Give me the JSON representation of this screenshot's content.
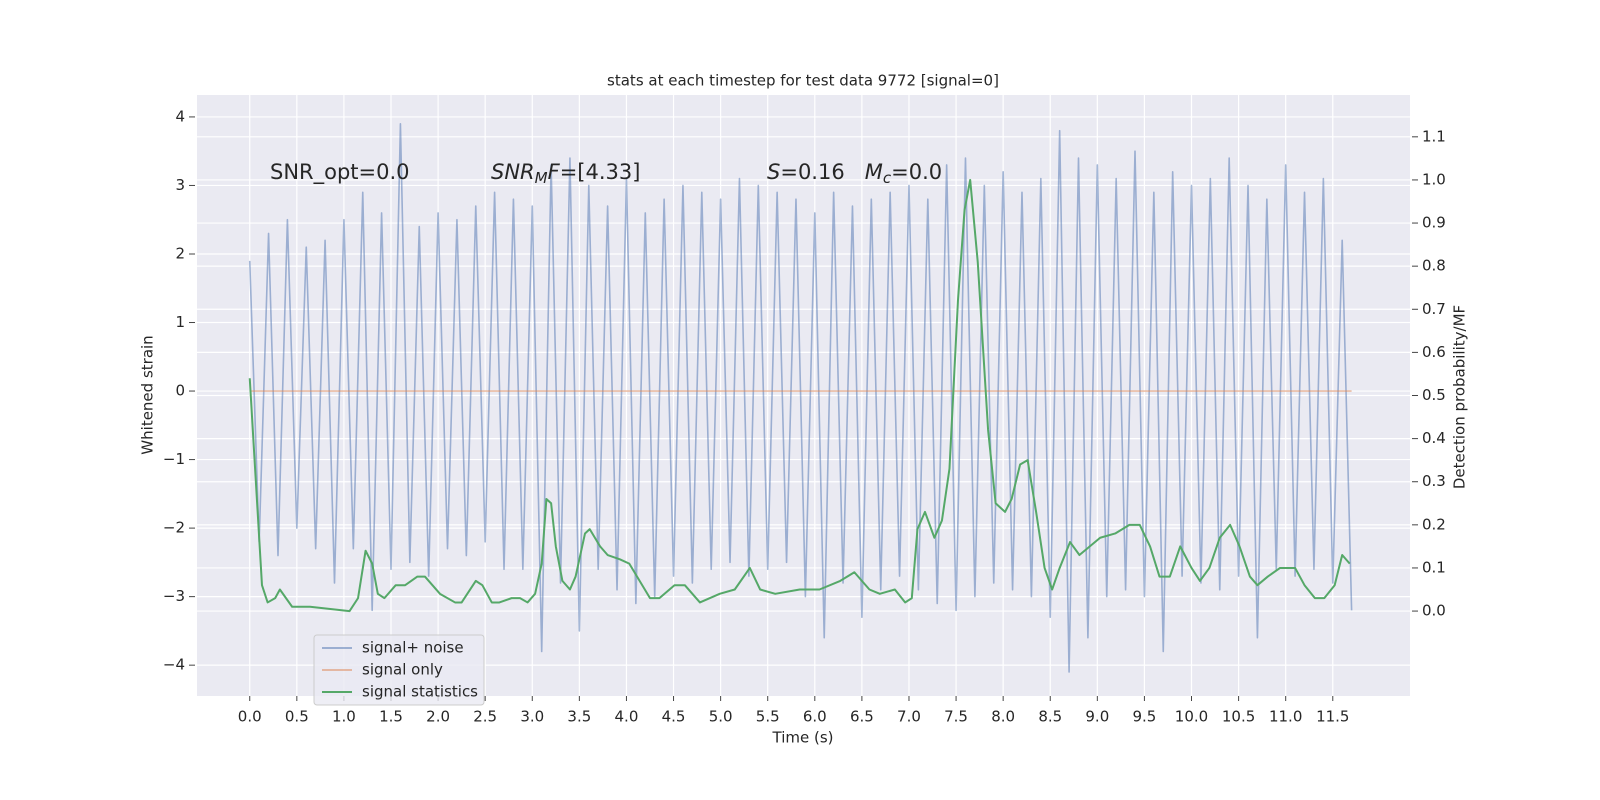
{
  "chart_data": {
    "type": "line",
    "title": "stats at each timestep for test data 9772 [signal=0]",
    "xlabel": "Time (s)",
    "ylabel": "Whitened strain",
    "y2label": "Detection probability/MF",
    "grid": true,
    "legend": "lower left",
    "annotations": [
      {
        "parts": [
          {
            "text": "SNR_opt=0.0"
          }
        ]
      },
      {
        "parts": [
          {
            "text": "SNR",
            "italic": true
          },
          {
            "text": "M",
            "italic": true,
            "sub": true
          },
          {
            "text": "F",
            "italic": true
          },
          {
            "text": "=[4.33]"
          }
        ]
      },
      {
        "parts": [
          {
            "text": "S",
            "italic": true
          },
          {
            "text": "=0.16   "
          },
          {
            "text": "M",
            "italic": true
          },
          {
            "text": "c",
            "italic": true,
            "sub": true
          },
          {
            "text": "=0.0"
          }
        ]
      }
    ],
    "xlim": [
      -0.56,
      12.32
    ],
    "ylim": [
      -4.45,
      4.32
    ],
    "y2lim": [
      -0.197,
      1.197
    ],
    "xticks": [
      {
        "value": 0,
        "label": "0.0"
      },
      {
        "value": 0.5,
        "label": "0.5"
      },
      {
        "value": 1,
        "label": "1.0"
      },
      {
        "value": 1.5,
        "label": "1.5"
      },
      {
        "value": 2,
        "label": "2.0"
      },
      {
        "value": 2.5,
        "label": "2.5"
      },
      {
        "value": 3,
        "label": "3.0"
      },
      {
        "value": 3.5,
        "label": "3.5"
      },
      {
        "value": 4,
        "label": "4.0"
      },
      {
        "value": 4.5,
        "label": "4.5"
      },
      {
        "value": 5,
        "label": "5.0"
      },
      {
        "value": 5.5,
        "label": "5.5"
      },
      {
        "value": 6,
        "label": "6.0"
      },
      {
        "value": 6.5,
        "label": "6.5"
      },
      {
        "value": 7,
        "label": "7.0"
      },
      {
        "value": 7.5,
        "label": "7.5"
      },
      {
        "value": 8,
        "label": "8.0"
      },
      {
        "value": 8.5,
        "label": "8.5"
      },
      {
        "value": 9,
        "label": "9.0"
      },
      {
        "value": 9.5,
        "label": "9.5"
      },
      {
        "value": 10,
        "label": "10.0"
      },
      {
        "value": 10.5,
        "label": "10.5"
      },
      {
        "value": 11,
        "label": "11.0"
      },
      {
        "value": 11.5,
        "label": "11.5"
      }
    ],
    "yticks": [
      {
        "value": -4,
        "label": "−4"
      },
      {
        "value": -3,
        "label": "−3"
      },
      {
        "value": -2,
        "label": "−2"
      },
      {
        "value": -1,
        "label": "−1"
      },
      0,
      1,
      2,
      3,
      4
    ],
    "y2ticks": [
      {
        "value": 0,
        "label": "0.0"
      },
      0.1,
      0.2,
      0.3,
      0.4,
      0.5,
      0.6,
      0.7,
      0.8,
      0.9,
      {
        "value": 1,
        "label": "1.0"
      },
      1.1
    ],
    "x": [
      0,
      0.1,
      0.2,
      0.3,
      0.4,
      0.5,
      0.6,
      0.7,
      0.8,
      0.9,
      1,
      1.1,
      1.2,
      1.3,
      1.4,
      1.5,
      1.6,
      1.7,
      1.8,
      1.9,
      2,
      2.1,
      2.2,
      2.3,
      2.4,
      2.5,
      2.6,
      2.7,
      2.8,
      2.9,
      3,
      3.1,
      3.2,
      3.3,
      3.4,
      3.5,
      3.6,
      3.7,
      3.8,
      3.9,
      4,
      4.1,
      4.2,
      4.3,
      4.4,
      4.5,
      4.6,
      4.7,
      4.8,
      4.9,
      5,
      5.1,
      5.2,
      5.3,
      5.4,
      5.5,
      5.6,
      5.7,
      5.8,
      5.9,
      6,
      6.1,
      6.2,
      6.3,
      6.4,
      6.5,
      6.6,
      6.7,
      6.8,
      6.9,
      7,
      7.1,
      7.2,
      7.3,
      7.4,
      7.5,
      7.6,
      7.7,
      7.8,
      7.9,
      8,
      8.1,
      8.2,
      8.3,
      8.4,
      8.5,
      8.6,
      8.7,
      8.8,
      8.9,
      9,
      9.1,
      9.2,
      9.3,
      9.4,
      9.5,
      9.6,
      9.7,
      9.8,
      9.9,
      10,
      10.1,
      10.2,
      10.3,
      10.4,
      10.5,
      10.6,
      10.7,
      10.8,
      10.9,
      11,
      11.1,
      11.2,
      11.3,
      11.4,
      11.5,
      11.6,
      11.7
    ],
    "series": [
      {
        "name": "signal+ noise",
        "color": "#4c72b0",
        "alpha": 0.5,
        "values": [
          1.9,
          -2.2,
          2.3,
          -2.4,
          2.5,
          -2.0,
          2.1,
          -2.3,
          2.2,
          -2.8,
          2.5,
          -2.3,
          2.9,
          -3.2,
          2.6,
          -2.6,
          3.9,
          -2.5,
          2.4,
          -2.7,
          2.6,
          -2.3,
          2.5,
          -2.4,
          2.7,
          -2.2,
          2.9,
          -2.6,
          2.8,
          -2.6,
          2.7,
          -3.8,
          3.3,
          -2.8,
          3.4,
          -3.5,
          3.0,
          -2.6,
          2.7,
          -2.9,
          3.1,
          -3.1,
          2.6,
          -3.0,
          2.8,
          -2.7,
          3.0,
          -2.8,
          2.9,
          -2.6,
          2.8,
          -2.5,
          3.1,
          -2.7,
          3.0,
          -2.6,
          2.9,
          -2.5,
          2.8,
          -3.0,
          2.6,
          -3.6,
          2.9,
          -2.8,
          2.7,
          -3.3,
          2.8,
          -2.9,
          2.9,
          -2.7,
          3.0,
          -2.9,
          2.8,
          -3.1,
          3.3,
          -3.2,
          3.4,
          -3.0,
          3.0,
          -2.8,
          3.2,
          -2.9,
          2.9,
          -3.0,
          3.1,
          -3.3,
          3.8,
          -4.1,
          3.4,
          -3.6,
          3.3,
          -3.0,
          3.1,
          -2.9,
          3.5,
          -3.0,
          2.9,
          -3.8,
          3.2,
          -2.7,
          3.0,
          -2.8,
          3.1,
          -2.9,
          3.4,
          -2.7,
          3.0,
          -3.6,
          2.8,
          -2.6,
          3.3,
          -2.7,
          2.9,
          -2.6,
          3.1,
          -2.8,
          2.2,
          -3.2
        ]
      },
      {
        "name": "signal only",
        "color": "#dd8452",
        "alpha": 0.5,
        "values": [
          0,
          0,
          0,
          0,
          0,
          0,
          0,
          0,
          0,
          0,
          0,
          0,
          0,
          0,
          0,
          0,
          0,
          0,
          0,
          0,
          0,
          0,
          0,
          0,
          0,
          0,
          0,
          0,
          0,
          0,
          0,
          0,
          0,
          0,
          0,
          0,
          0,
          0,
          0,
          0,
          0,
          0,
          0,
          0,
          0,
          0,
          0,
          0,
          0,
          0,
          0,
          0,
          0,
          0,
          0,
          0,
          0,
          0,
          0,
          0,
          0,
          0,
          0,
          0,
          0,
          0,
          0,
          0,
          0,
          0,
          0,
          0,
          0,
          0,
          0,
          0,
          0,
          0,
          0,
          0,
          0,
          0,
          0,
          0,
          0,
          0,
          0,
          0,
          0,
          0,
          0,
          0,
          0,
          0,
          0,
          0,
          0,
          0,
          0,
          0,
          0,
          0,
          0,
          0,
          0,
          0,
          0,
          0,
          0,
          0,
          0,
          0,
          0,
          0,
          0,
          0,
          0,
          0
        ]
      },
      {
        "name": "signal statistics",
        "color": "#55a868",
        "alpha": 1,
        "axis": "y2",
        "x": [
          0,
          0.13,
          0.19,
          0.27,
          0.32,
          0.45,
          0.64,
          1.06,
          1.15,
          1.23,
          1.3,
          1.36,
          1.43,
          1.55,
          1.65,
          1.78,
          1.86,
          2.02,
          2.18,
          2.25,
          2.4,
          2.47,
          2.57,
          2.65,
          2.78,
          2.87,
          2.95,
          3.03,
          3.1,
          3.15,
          3.2,
          3.25,
          3.32,
          3.4,
          3.46,
          3.56,
          3.61,
          3.72,
          3.8,
          3.93,
          4.03,
          4.14,
          4.25,
          4.35,
          4.51,
          4.62,
          4.78,
          4.99,
          5.15,
          5.31,
          5.42,
          5.58,
          5.84,
          6.05,
          6.27,
          6.42,
          6.58,
          6.69,
          6.85,
          6.96,
          7.03,
          7.09,
          7.17,
          7.27,
          7.35,
          7.43,
          7.52,
          7.59,
          7.65,
          7.73,
          7.84,
          7.92,
          8.02,
          8.09,
          8.18,
          8.26,
          8.35,
          8.44,
          8.52,
          8.6,
          8.71,
          8.81,
          8.92,
          9.03,
          9.19,
          9.34,
          9.45,
          9.56,
          9.66,
          9.77,
          9.88,
          10.0,
          10.09,
          10.19,
          10.3,
          10.41,
          10.51,
          10.62,
          10.7,
          10.81,
          10.94,
          11.1,
          11.2,
          11.31,
          11.41,
          11.52,
          11.6,
          11.68
        ],
        "values": [
          0.54,
          0.06,
          0.02,
          0.03,
          0.05,
          0.01,
          0.01,
          0.0,
          0.03,
          0.14,
          0.11,
          0.04,
          0.03,
          0.06,
          0.06,
          0.08,
          0.08,
          0.04,
          0.02,
          0.02,
          0.07,
          0.06,
          0.02,
          0.02,
          0.03,
          0.03,
          0.02,
          0.04,
          0.11,
          0.26,
          0.25,
          0.15,
          0.07,
          0.05,
          0.08,
          0.18,
          0.19,
          0.15,
          0.13,
          0.12,
          0.11,
          0.07,
          0.03,
          0.03,
          0.06,
          0.06,
          0.02,
          0.04,
          0.05,
          0.1,
          0.05,
          0.04,
          0.05,
          0.05,
          0.07,
          0.09,
          0.05,
          0.04,
          0.05,
          0.02,
          0.03,
          0.19,
          0.23,
          0.17,
          0.21,
          0.33,
          0.72,
          0.93,
          1.0,
          0.81,
          0.42,
          0.25,
          0.23,
          0.26,
          0.34,
          0.35,
          0.23,
          0.1,
          0.05,
          0.1,
          0.16,
          0.13,
          0.15,
          0.17,
          0.18,
          0.2,
          0.2,
          0.15,
          0.08,
          0.08,
          0.15,
          0.1,
          0.07,
          0.1,
          0.17,
          0.2,
          0.15,
          0.08,
          0.06,
          0.08,
          0.1,
          0.1,
          0.06,
          0.03,
          0.03,
          0.06,
          0.13,
          0.11
        ]
      }
    ]
  }
}
